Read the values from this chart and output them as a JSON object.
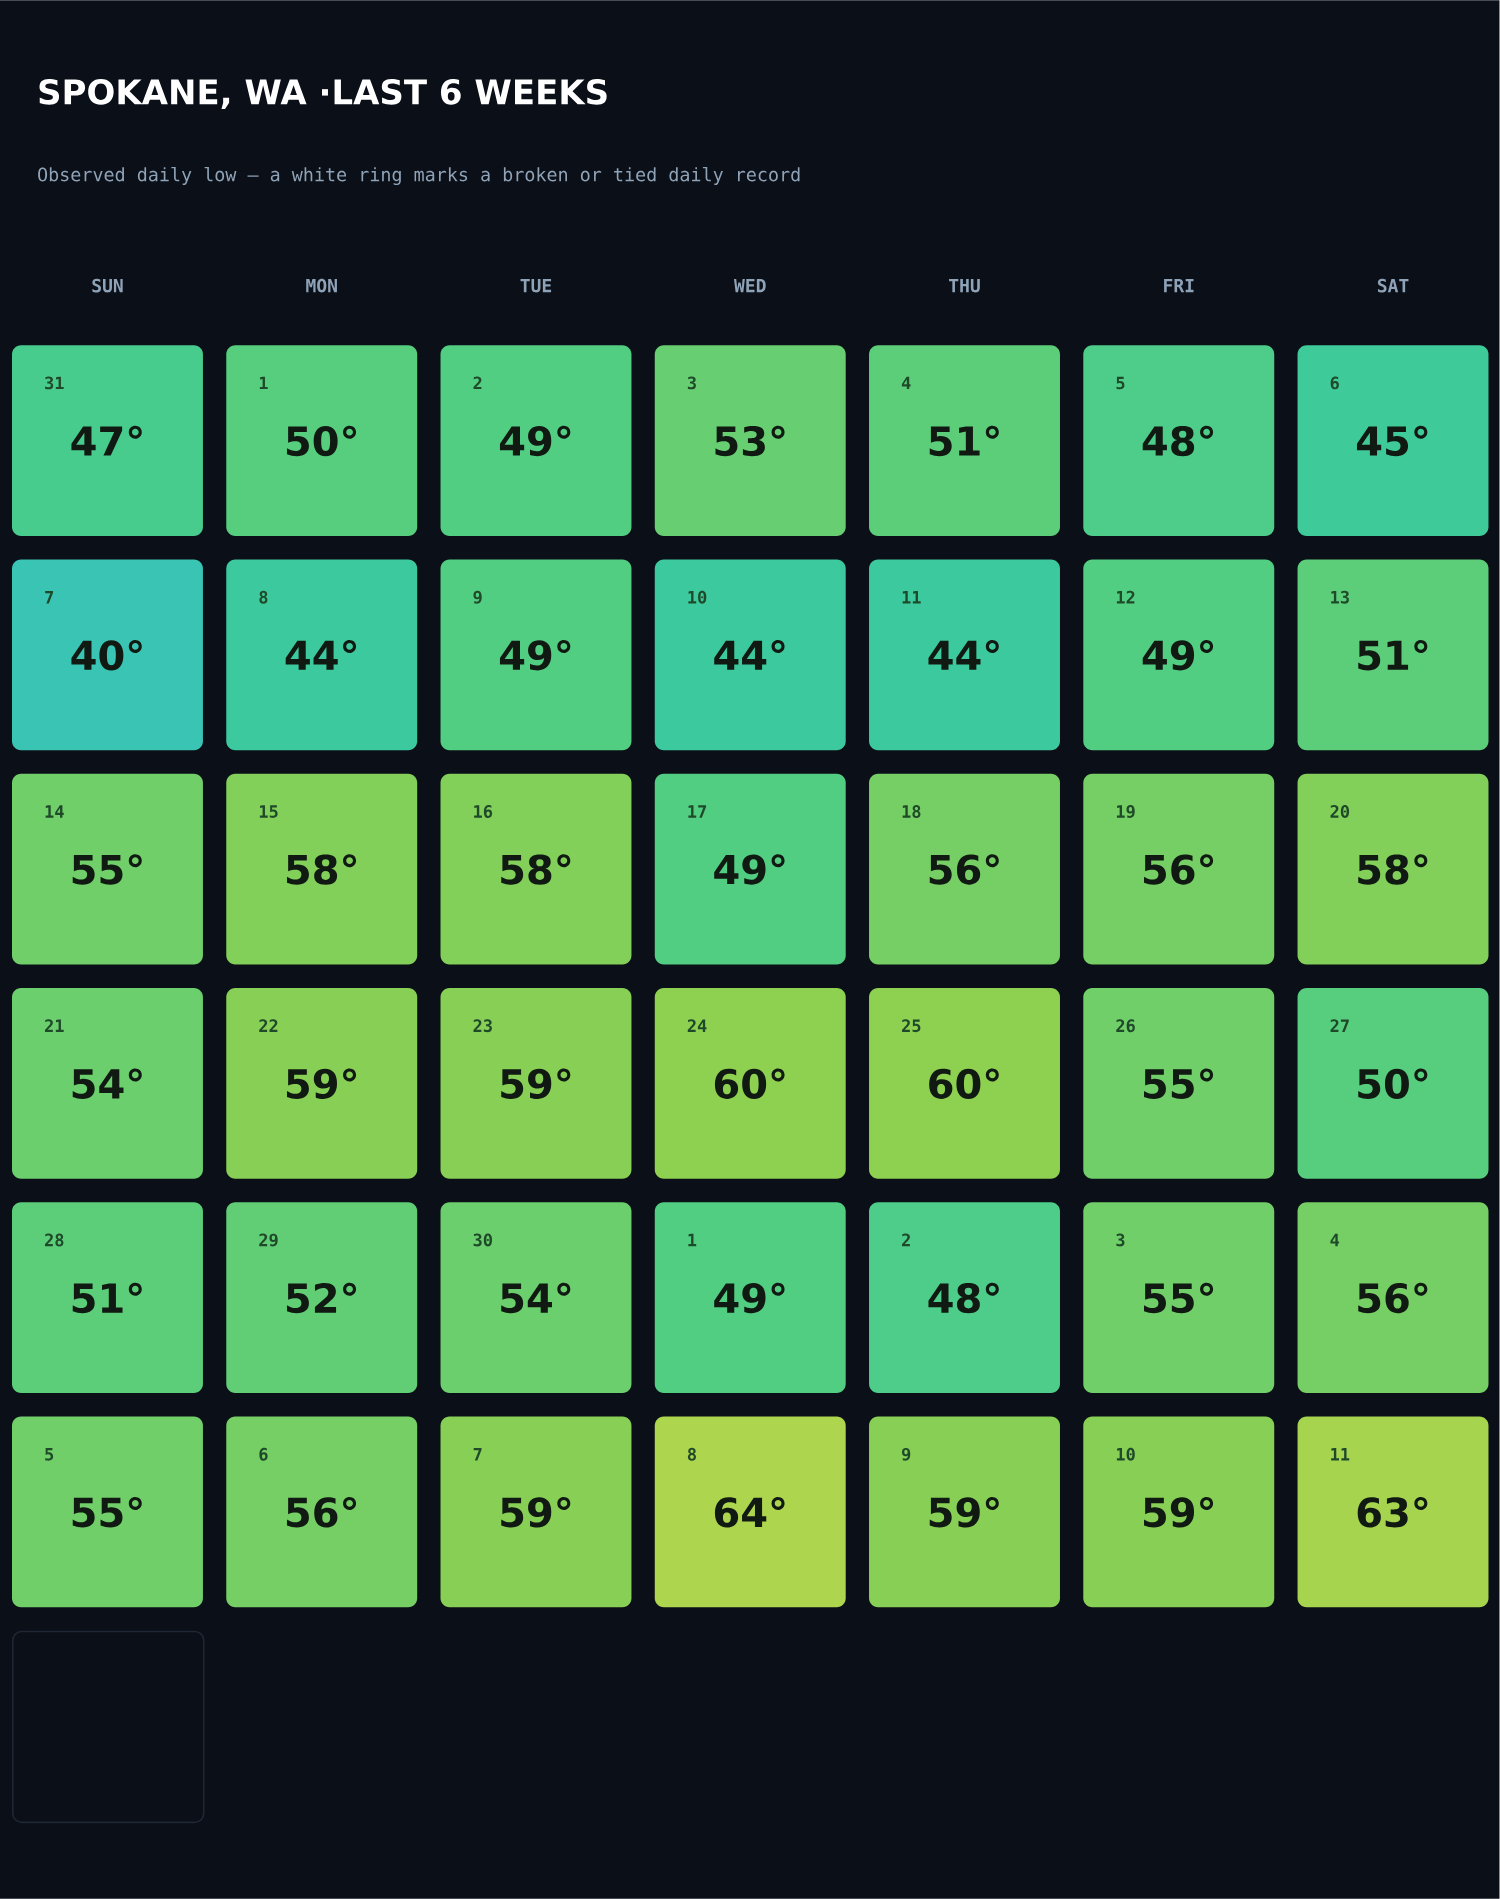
{
  "chart_data": {
    "type": "heatmap",
    "title": "SPOKANE, WA ·LAST 6 WEEKS",
    "subtitle": "Observed daily low — a white ring marks a broken or tied daily record",
    "categories": [
      "SUN",
      "MON",
      "TUE",
      "WED",
      "THU",
      "FRI",
      "SAT"
    ],
    "y_categories": [
      null,
      null,
      null,
      null,
      null,
      null
    ],
    "cells": [
      [
        47,
        50,
        49,
        53,
        51,
        48,
        45
      ],
      [
        40,
        44,
        49,
        44,
        44,
        49,
        51
      ],
      [
        55,
        58,
        58,
        49,
        56,
        56,
        58
      ],
      [
        54,
        59,
        59,
        60,
        60,
        55,
        50
      ],
      [
        51,
        52,
        54,
        49,
        48,
        55,
        56
      ],
      [
        55,
        56,
        59,
        64,
        59,
        59,
        63
      ]
    ],
    "cell_labels": [
      [
        "47°",
        "50°",
        "49°",
        "53°",
        "51°",
        "48°",
        "45°"
      ],
      [
        "40°",
        "44°",
        "49°",
        "44°",
        "44°",
        "49°",
        "51°"
      ],
      [
        "55°",
        "58°",
        "58°",
        "49°",
        "56°",
        "56°",
        "58°"
      ],
      [
        "54°",
        "59°",
        "59°",
        "60°",
        "60°",
        "55°",
        "50°"
      ],
      [
        "51°",
        "52°",
        "54°",
        "49°",
        "48°",
        "55°",
        "56°"
      ],
      [
        "55°",
        "56°",
        "59°",
        "64°",
        "59°",
        "59°",
        "63°"
      ]
    ],
    "annotations": [
      "31",
      "1",
      "2",
      "3",
      "4",
      "5",
      "6",
      "7",
      "8",
      "9",
      "10",
      "11",
      "12",
      "13",
      "14",
      "15",
      "16",
      "17",
      "18",
      "19",
      "20",
      "21",
      "22",
      "23",
      "24",
      "25",
      "26",
      "27",
      "28",
      "29",
      "30",
      "1",
      "2",
      "3",
      "4",
      "5",
      "6",
      "7",
      "8",
      "9",
      "10",
      "11"
    ]
  }
}
